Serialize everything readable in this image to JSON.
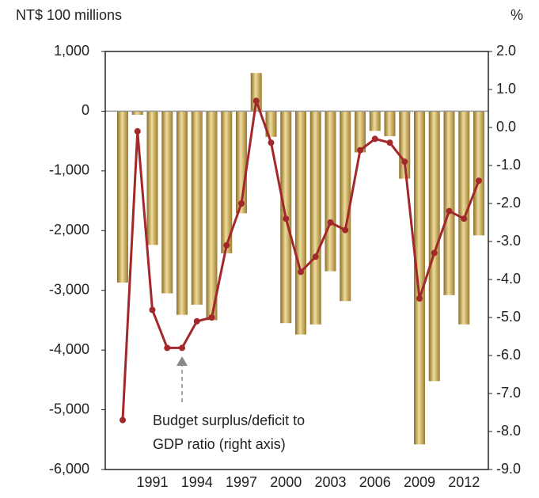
{
  "chart_data": {
    "type": "bar",
    "y_label": "NT$ 100 millions",
    "y2_label": "%",
    "annotation": [
      "Budget surplus/deficit to",
      "GDP ratio (right axis)"
    ],
    "categories": [
      null,
      null,
      "1991",
      null,
      null,
      "1994",
      null,
      null,
      "1997",
      null,
      null,
      "2000",
      null,
      null,
      "2003",
      null,
      null,
      "2006",
      null,
      null,
      "2009",
      null,
      null,
      "2012",
      null
    ],
    "series": [
      {
        "type": "bar",
        "color": "#c8a850",
        "values": [
          -2870,
          -60,
          -2240,
          -3050,
          -3410,
          -3240,
          -3500,
          -2380,
          -1710,
          640,
          -430,
          -3550,
          -3740,
          -3570,
          -2680,
          -3180,
          -690,
          -330,
          -420,
          -1130,
          -5580,
          -4520,
          -3080,
          -3570,
          -2080
        ]
      },
      {
        "type": "line",
        "axis": "y2",
        "color": "#a3282b",
        "values": [
          -7.7,
          -0.1,
          -4.8,
          -5.8,
          -5.8,
          -5.1,
          -5.0,
          -3.1,
          -2.0,
          0.7,
          -0.4,
          -2.4,
          -3.8,
          -3.4,
          -2.5,
          -2.7,
          -0.6,
          -0.3,
          -0.4,
          -0.9,
          -4.5,
          -3.3,
          -2.2,
          -2.4,
          -1.4
        ]
      }
    ],
    "ylim": [
      -6000,
      1000
    ],
    "yticks": [
      {
        "value": 1000,
        "label": "1,000"
      },
      0,
      {
        "value": -1000,
        "label": "-1,000"
      },
      {
        "value": -2000,
        "label": "-2,000"
      },
      {
        "value": -3000,
        "label": "-3,000"
      },
      {
        "value": -4000,
        "label": "-4,000"
      },
      {
        "value": -5000,
        "label": "-5,000"
      },
      {
        "value": -6000,
        "label": "-6,000"
      }
    ],
    "y2lim": [
      -9,
      2
    ],
    "y2ticks": [
      {
        "value": 2,
        "label": "2.0"
      },
      {
        "value": 1,
        "label": "1.0"
      },
      {
        "value": 0,
        "label": "0.0"
      },
      {
        "value": -1,
        "label": "-1.0"
      },
      {
        "value": -2,
        "label": "-2.0"
      },
      {
        "value": -3,
        "label": "-3.0"
      },
      {
        "value": -4,
        "label": "-4.0"
      },
      {
        "value": -5,
        "label": "-5.0"
      },
      {
        "value": -6,
        "label": "-6.0"
      },
      {
        "value": -7,
        "label": "-7.0"
      },
      {
        "value": -8,
        "label": "-8.0"
      },
      {
        "value": -9,
        "label": "-9.0"
      }
    ]
  }
}
